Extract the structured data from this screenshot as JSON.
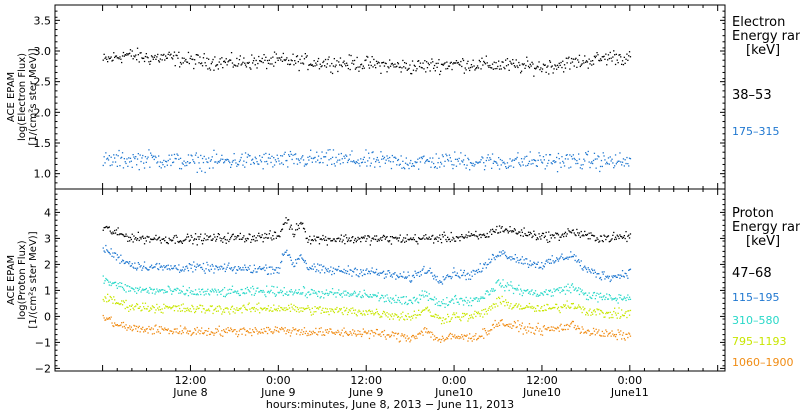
{
  "chart_data": [
    {
      "type": "scatter",
      "panel": "electron",
      "ylabel_lines": [
        "ACE EPAM",
        "log(Electron Flux)",
        "[1/(cm²s ster MeV)]"
      ],
      "ylim": [
        0.75,
        3.75
      ],
      "yticks": [
        "1.0",
        "1.5",
        "2.0",
        "2.5",
        "3.0",
        "3.5"
      ],
      "legend_title": [
        "Electron",
        "Energy ran"
      ],
      "legend_unit": "[keV]",
      "legend_placement": "right",
      "grid": false,
      "series": [
        {
          "name": "38–53",
          "color": "#000000",
          "x": [
            0,
            3,
            6,
            9,
            12,
            18,
            24,
            30,
            36,
            42,
            48,
            54,
            60,
            66,
            70,
            72
          ],
          "y": [
            2.85,
            2.95,
            2.9,
            2.9,
            2.85,
            2.82,
            2.85,
            2.82,
            2.8,
            2.75,
            2.8,
            2.78,
            2.75,
            2.85,
            2.92,
            2.88
          ]
        },
        {
          "name": "175–315",
          "color": "#1f77d0",
          "x": [
            0,
            6,
            12,
            18,
            24,
            30,
            36,
            42,
            48,
            54,
            60,
            66,
            72
          ],
          "y": [
            1.22,
            1.25,
            1.2,
            1.22,
            1.22,
            1.25,
            1.22,
            1.2,
            1.22,
            1.2,
            1.22,
            1.22,
            1.2
          ]
        }
      ]
    },
    {
      "type": "scatter",
      "panel": "proton",
      "ylabel_lines": [
        "ACE EPAM",
        "log(Proton Flux)",
        "[1/(cm²s ster MeV)]"
      ],
      "ylim": [
        -2.1,
        4.9
      ],
      "yticks": [
        "−2",
        "−1",
        "0",
        "1",
        "2",
        "3",
        "4"
      ],
      "legend_title": [
        "Proton",
        "Energy ran"
      ],
      "legend_unit": "[keV]",
      "legend_placement": "right",
      "grid": false,
      "series": [
        {
          "name": "47–68",
          "color": "#000000",
          "x": [
            0,
            2,
            4,
            8,
            12,
            18,
            24,
            25,
            26,
            27,
            28,
            30,
            36,
            42,
            48,
            50,
            52,
            54,
            56,
            58,
            60,
            62,
            64,
            66,
            68,
            70,
            72
          ],
          "y": [
            3.45,
            3.2,
            3.05,
            3.0,
            3.0,
            3.05,
            3.1,
            3.8,
            3.2,
            3.7,
            3.0,
            3.0,
            3.0,
            3.0,
            3.05,
            3.1,
            3.1,
            3.4,
            3.3,
            3.2,
            3.1,
            3.1,
            3.3,
            3.1,
            3.05,
            3.05,
            3.1
          ]
        },
        {
          "name": "115–195",
          "color": "#1f77d0",
          "x": [
            0,
            2,
            4,
            8,
            12,
            18,
            24,
            25,
            26,
            27,
            28,
            30,
            36,
            42,
            44,
            46,
            48,
            50,
            52,
            54,
            56,
            58,
            60,
            62,
            64,
            66,
            68,
            70,
            72
          ],
          "y": [
            2.65,
            2.3,
            2.0,
            1.9,
            1.9,
            1.85,
            1.85,
            2.6,
            2.0,
            2.4,
            1.9,
            1.8,
            1.75,
            1.5,
            1.85,
            1.45,
            1.7,
            1.6,
            1.9,
            2.5,
            2.3,
            2.1,
            2.0,
            2.2,
            2.4,
            1.8,
            1.6,
            1.55,
            1.75
          ]
        },
        {
          "name": "310–580",
          "color": "#28d8c8",
          "x": [
            0,
            2,
            4,
            8,
            12,
            18,
            24,
            30,
            36,
            42,
            44,
            46,
            48,
            50,
            52,
            54,
            56,
            58,
            60,
            62,
            64,
            66,
            68,
            70,
            72
          ],
          "y": [
            1.45,
            1.2,
            1.05,
            1.0,
            0.95,
            0.95,
            1.0,
            0.9,
            0.85,
            0.55,
            0.95,
            0.45,
            0.7,
            0.6,
            0.8,
            1.3,
            1.1,
            0.95,
            0.9,
            1.0,
            1.15,
            0.85,
            0.75,
            0.7,
            0.75
          ]
        },
        {
          "name": "795–1193",
          "color": "#c8e600",
          "x": [
            0,
            2,
            4,
            8,
            12,
            18,
            24,
            30,
            36,
            42,
            44,
            46,
            48,
            50,
            52,
            54,
            56,
            58,
            60,
            62,
            64,
            66,
            68,
            70,
            72
          ],
          "y": [
            0.75,
            0.55,
            0.4,
            0.35,
            0.3,
            0.3,
            0.35,
            0.25,
            0.2,
            0.0,
            0.3,
            -0.1,
            0.05,
            0.0,
            0.15,
            0.6,
            0.45,
            0.35,
            0.3,
            0.35,
            0.5,
            0.25,
            0.15,
            0.1,
            0.15
          ]
        },
        {
          "name": "1060–1900",
          "color": "#f08c14",
          "x": [
            0,
            2,
            4,
            8,
            12,
            18,
            24,
            30,
            36,
            42,
            44,
            46,
            48,
            50,
            52,
            54,
            56,
            58,
            60,
            62,
            64,
            66,
            68,
            70,
            72
          ],
          "y": [
            0.0,
            -0.3,
            -0.45,
            -0.5,
            -0.55,
            -0.55,
            -0.5,
            -0.6,
            -0.6,
            -0.8,
            -0.5,
            -0.9,
            -0.75,
            -0.8,
            -0.65,
            -0.2,
            -0.35,
            -0.45,
            -0.5,
            -0.45,
            -0.3,
            -0.55,
            -0.65,
            -0.7,
            -0.7
          ]
        }
      ]
    }
  ],
  "x_axis": {
    "xlim_hours": [
      -6.5,
      85
    ],
    "tick_labels": [
      {
        "hour": 12,
        "top": "12:00",
        "bottom": "June 8"
      },
      {
        "hour": 24,
        "top": "0:00",
        "bottom": "June 9"
      },
      {
        "hour": 36,
        "top": "12:00",
        "bottom": "June 9"
      },
      {
        "hour": 48,
        "top": "0:00",
        "bottom": "June10"
      },
      {
        "hour": 60,
        "top": "12:00",
        "bottom": "June10"
      },
      {
        "hour": 72,
        "top": "0:00",
        "bottom": "June11"
      }
    ],
    "xlabel": "hours:minutes, June  8, 2013 − June 11, 2013"
  },
  "colors": {
    "frame": "#000000",
    "background": "#ffffff"
  }
}
